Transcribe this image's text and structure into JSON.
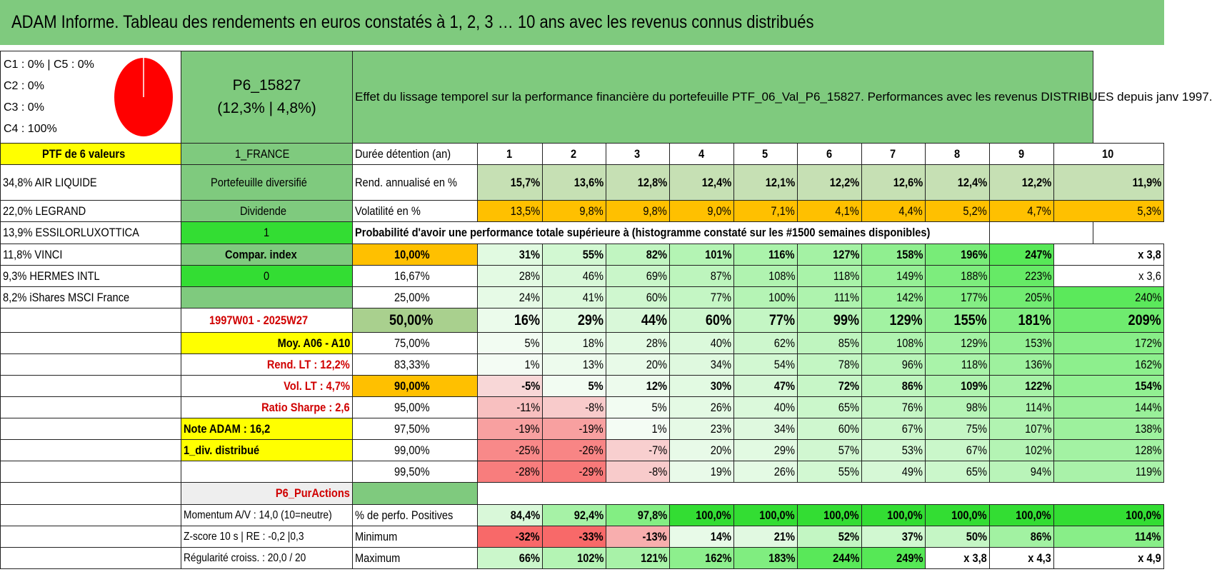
{
  "title": "ADAM Informe. Tableau des rendements en euros constatés à 1, 2, 3 … 10 ans avec les revenus connus distribués",
  "header": {
    "allocation": [
      "C1 : 0% | C5 : 0%",
      "C2 : 0%",
      "C3 : 0%",
      "C4 : 100%"
    ],
    "pie": {
      "slices": [
        {
          "label": "C4",
          "value": 100,
          "color": "#ff0000"
        }
      ]
    },
    "portfolio_code": "P6_15827",
    "portfolio_stats": "(12,3% | 4,8%)",
    "description": "Effet du lissage temporel sur la performance financière du portefeuille PTF_06_Val_P6_15827. Performances avec les revenus DISTRIBUES depuis janv 1997."
  },
  "left": {
    "ptf_label": "PTF de 6 valeurs",
    "holdings": [
      "34,8% AIR LIQUIDE",
      "22,0% LEGRAND",
      "13,9% ESSILORLUXOTTICA",
      "11,8% VINCI",
      "9,3% HERMES INTL",
      "8,2% iShares MSCI France"
    ]
  },
  "middle": {
    "country": "1_FRANCE",
    "type": "Portefeuille diversifié",
    "income": "Dividende",
    "v1": "1",
    "compar": "Compar. index",
    "v0": "0",
    "period": "1997W01 - 2025W27",
    "moy": "Moy. A06 - A10",
    "rend_lt": "Rend. LT : 12,2%",
    "vol_lt": "Vol. LT : 4,7%",
    "sharpe": "Ratio Sharpe : 2,6",
    "note": "Note ADAM : 16,2",
    "div": "1_div. distribué",
    "pur": "P6_PurActions",
    "momentum": "Momentum A/V : 14,0 (10=neutre)",
    "zscore": "Z-score 10 s | RE : -0,2 |0,3",
    "regul": "Régularité croiss. : 20,0 / 20"
  },
  "table": {
    "duration_label": "Durée détention (an)",
    "years": [
      "1",
      "2",
      "3",
      "4",
      "5",
      "6",
      "7",
      "8",
      "9",
      "10"
    ],
    "rend_label": "Rend. annualisé en %",
    "rend": [
      "15,7%",
      "13,6%",
      "12,8%",
      "12,4%",
      "12,1%",
      "12,2%",
      "12,6%",
      "12,4%",
      "12,2%",
      "11,9%"
    ],
    "vol_label": "Volatilité en %",
    "vol": [
      "13,5%",
      "9,8%",
      "9,8%",
      "9,0%",
      "7,1%",
      "4,1%",
      "4,4%",
      "5,2%",
      "4,7%",
      "5,3%"
    ],
    "prob_label": "Probabilité d'avoir une performance totale supérieure à (histogramme constaté sur les #1500 semaines disponibles)",
    "quantiles": [
      {
        "p": "10,00%",
        "v": [
          "31%",
          "55%",
          "82%",
          "101%",
          "116%",
          "127%",
          "158%",
          "196%",
          "247%",
          "x 3,8"
        ]
      },
      {
        "p": "16,67%",
        "v": [
          "28%",
          "46%",
          "69%",
          "87%",
          "108%",
          "118%",
          "149%",
          "188%",
          "223%",
          "x 3,6"
        ]
      },
      {
        "p": "25,00%",
        "v": [
          "24%",
          "41%",
          "60%",
          "77%",
          "100%",
          "111%",
          "142%",
          "177%",
          "205%",
          "240%"
        ]
      },
      {
        "p": "50,00%",
        "v": [
          "16%",
          "29%",
          "44%",
          "60%",
          "77%",
          "99%",
          "129%",
          "155%",
          "181%",
          "209%"
        ]
      },
      {
        "p": "75,00%",
        "v": [
          "5%",
          "18%",
          "28%",
          "40%",
          "62%",
          "85%",
          "108%",
          "129%",
          "153%",
          "172%"
        ]
      },
      {
        "p": "83,33%",
        "v": [
          "1%",
          "13%",
          "20%",
          "34%",
          "54%",
          "78%",
          "96%",
          "118%",
          "136%",
          "162%"
        ]
      },
      {
        "p": "90,00%",
        "v": [
          "-5%",
          "5%",
          "12%",
          "30%",
          "47%",
          "72%",
          "86%",
          "109%",
          "122%",
          "154%"
        ]
      },
      {
        "p": "95,00%",
        "v": [
          "-11%",
          "-8%",
          "5%",
          "26%",
          "40%",
          "65%",
          "76%",
          "98%",
          "114%",
          "144%"
        ]
      },
      {
        "p": "97,50%",
        "v": [
          "-19%",
          "-19%",
          "1%",
          "23%",
          "34%",
          "60%",
          "67%",
          "75%",
          "107%",
          "138%"
        ]
      },
      {
        "p": "99,00%",
        "v": [
          "-25%",
          "-26%",
          "-7%",
          "20%",
          "29%",
          "57%",
          "53%",
          "67%",
          "102%",
          "128%"
        ]
      },
      {
        "p": "99,50%",
        "v": [
          "-28%",
          "-29%",
          "-8%",
          "19%",
          "26%",
          "55%",
          "49%",
          "65%",
          "94%",
          "119%"
        ]
      }
    ],
    "pos_label": "% de perfo. Positives",
    "pos": [
      "84,4%",
      "92,4%",
      "97,8%",
      "100,0%",
      "100,0%",
      "100,0%",
      "100,0%",
      "100,0%",
      "100,0%",
      "100,0%"
    ],
    "min_label": "Minimum",
    "min": [
      "-32%",
      "-33%",
      "-13%",
      "14%",
      "21%",
      "52%",
      "37%",
      "50%",
      "86%",
      "114%"
    ],
    "max_label": "Maximum",
    "max": [
      "66%",
      "102%",
      "121%",
      "162%",
      "183%",
      "244%",
      "249%",
      "x 3,8",
      "x 4,3",
      "x 4,9"
    ]
  },
  "colors": {
    "green": "#7fca7e",
    "yellow": "#ffff00",
    "orange": "#ffc000",
    "red": "#ff0000",
    "lime": "#33dd33"
  }
}
